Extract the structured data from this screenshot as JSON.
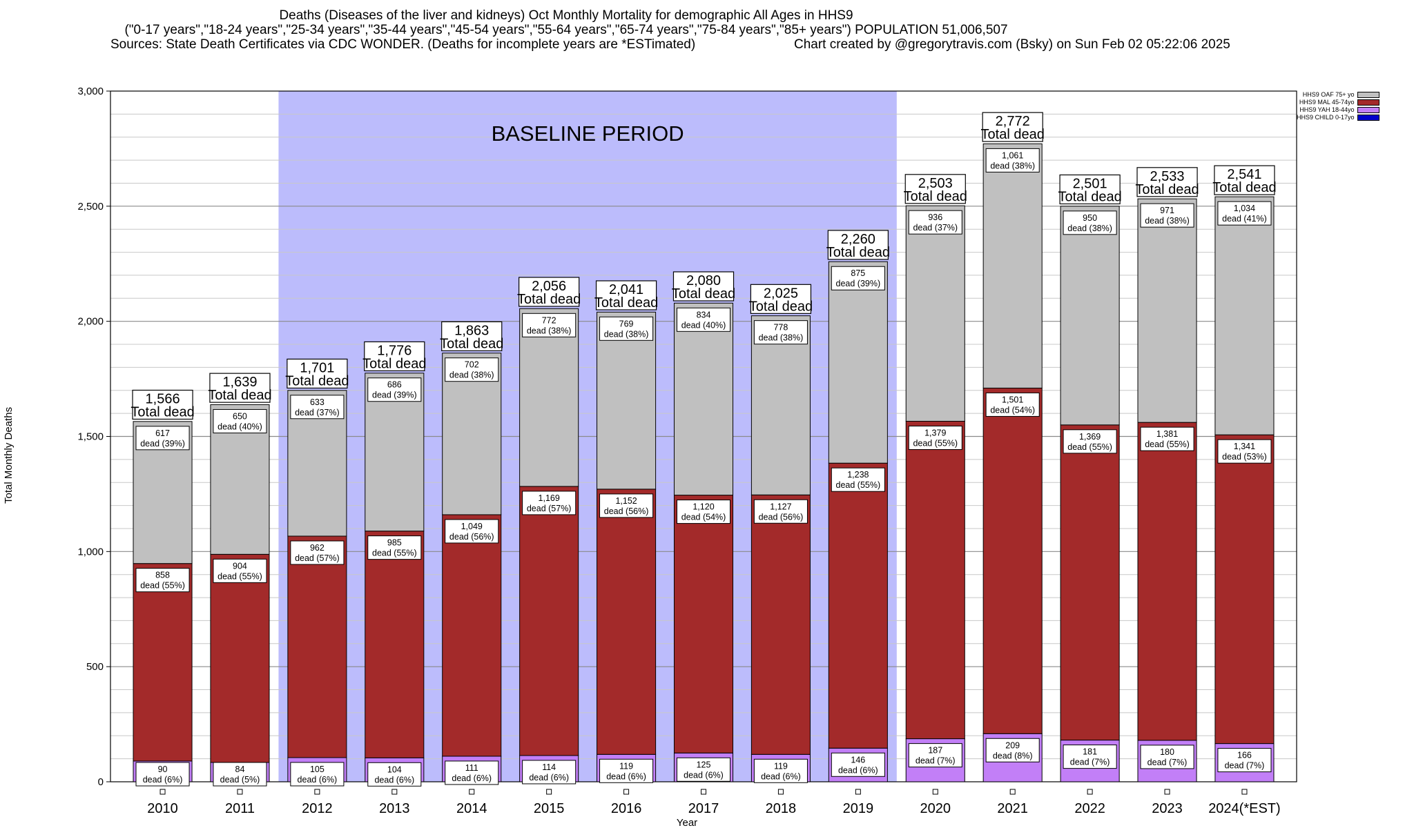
{
  "header": {
    "title_line1": "Deaths (Diseases of the liver and kidneys) Oct Monthly Mortality for demographic All Ages in HHS9",
    "title_line2": "(\"0-17 years\",\"18-24 years\",\"25-34 years\",\"35-44 years\",\"45-54 years\",\"55-64 years\",\"65-74 years\",\"75-84 years\",\"85+ years\") POPULATION 51,006,507",
    "sources": "Sources: State Death Certificates via CDC WONDER. (Deaths for incomplete years are *ESTimated)",
    "credit": "Chart created by @gregorytravis.com (Bsky) on Sun Feb 02 05:22:06 2025"
  },
  "chart_data": {
    "type": "bar",
    "stacked": true,
    "xlabel": "Year",
    "ylabel": "Total Monthly Deaths",
    "ylim": [
      0,
      3000
    ],
    "yticks": [
      0,
      500,
      1000,
      1500,
      2000,
      2500,
      3000
    ],
    "ytick_labels": [
      "0",
      "500",
      "1,000",
      "1,500",
      "2,000",
      "2,500",
      "3,000"
    ],
    "categories": [
      "2010",
      "2011",
      "2012",
      "2013",
      "2014",
      "2015",
      "2016",
      "2017",
      "2018",
      "2019",
      "2020",
      "2021",
      "2022",
      "2023",
      "2024(*EST)"
    ],
    "baseline": {
      "label": "BASELINE PERIOD",
      "from": "2012",
      "to": "2019",
      "color": "#bcbcfc"
    },
    "totals": [
      1566,
      1639,
      1701,
      1776,
      1863,
      2056,
      2041,
      2080,
      2025,
      2260,
      2503,
      2772,
      2501,
      2533,
      2541
    ],
    "total_labels": [
      "1,566",
      "1,639",
      "1,701",
      "1,776",
      "1,863",
      "2,056",
      "2,041",
      "2,080",
      "2,025",
      "2,260",
      "2,503",
      "2,772",
      "2,501",
      "2,533",
      "2,541"
    ],
    "total_suffix": "Total dead",
    "series": [
      {
        "name": "HHS9 CHILD 0-17yo",
        "color": "#0000cc",
        "values": [
          0,
          0,
          0,
          0,
          0,
          0,
          0,
          0,
          0,
          0,
          0,
          0,
          0,
          0,
          0
        ]
      },
      {
        "name": "HHS9 YAH 18-44yo",
        "color": "#c27ff7",
        "values": [
          90,
          84,
          105,
          104,
          111,
          114,
          119,
          125,
          119,
          146,
          187,
          209,
          181,
          180,
          166
        ],
        "labels": [
          "90",
          "84",
          "105",
          "104",
          "111",
          "114",
          "119",
          "125",
          "119",
          "146",
          "187",
          "209",
          "181",
          "180",
          "166"
        ],
        "pct": [
          "dead (6%)",
          "dead (5%)",
          "dead (6%)",
          "dead (6%)",
          "dead (6%)",
          "dead (6%)",
          "dead (6%)",
          "dead (6%)",
          "dead (6%)",
          "dead (6%)",
          "dead (7%)",
          "dead (8%)",
          "dead (7%)",
          "dead (7%)",
          "dead (7%)"
        ]
      },
      {
        "name": "HHS9 MAL 45-74yo",
        "color": "#a32a2a",
        "values": [
          858,
          904,
          962,
          985,
          1049,
          1169,
          1152,
          1120,
          1127,
          1238,
          1379,
          1501,
          1369,
          1381,
          1341
        ],
        "labels": [
          "858",
          "904",
          "962",
          "985",
          "1,049",
          "1,169",
          "1,152",
          "1,120",
          "1,127",
          "1,238",
          "1,379",
          "1,501",
          "1,369",
          "1,381",
          "1,341"
        ],
        "pct": [
          "dead (55%)",
          "dead (55%)",
          "dead (57%)",
          "dead (55%)",
          "dead (56%)",
          "dead (57%)",
          "dead (56%)",
          "dead (54%)",
          "dead (56%)",
          "dead (55%)",
          "dead (55%)",
          "dead (54%)",
          "dead (55%)",
          "dead (55%)",
          "dead (53%)"
        ]
      },
      {
        "name": "HHS9 OAF 75+ yo",
        "color": "#c0c0c0",
        "values": [
          617,
          650,
          633,
          686,
          702,
          772,
          769,
          834,
          778,
          875,
          936,
          1061,
          950,
          971,
          1034
        ],
        "labels": [
          "617",
          "650",
          "633",
          "686",
          "702",
          "772",
          "769",
          "834",
          "778",
          "875",
          "936",
          "1,061",
          "950",
          "971",
          "1,034"
        ],
        "pct": [
          "dead (39%)",
          "dead (40%)",
          "dead (37%)",
          "dead (39%)",
          "dead (38%)",
          "dead (38%)",
          "dead (38%)",
          "dead (40%)",
          "dead (38%)",
          "dead (39%)",
          "dead (37%)",
          "dead (38%)",
          "dead (38%)",
          "dead (38%)",
          "dead (41%)"
        ]
      }
    ],
    "legend_position": "top-right outside plot",
    "grid": "horizontal"
  }
}
